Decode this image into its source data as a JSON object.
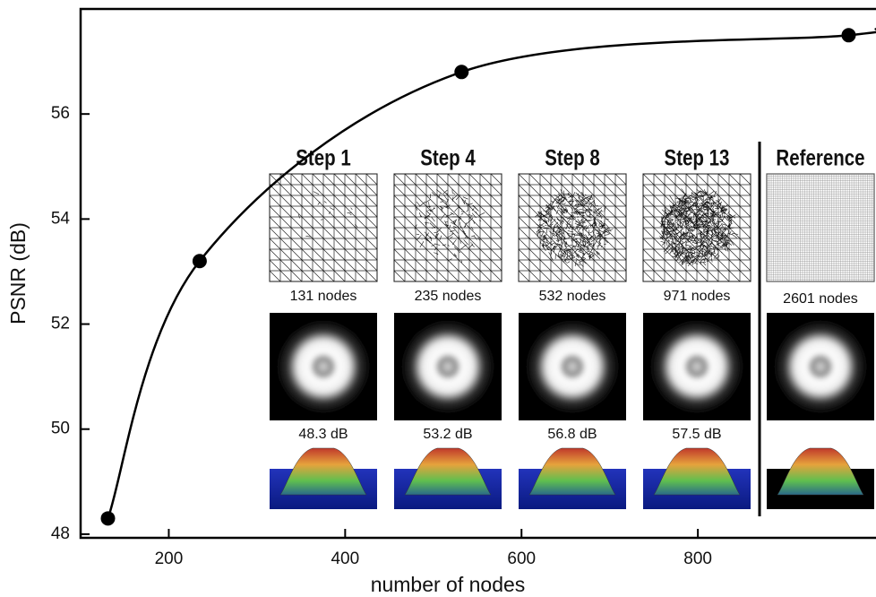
{
  "chart_data": {
    "type": "line",
    "xlabel": "number of nodes",
    "ylabel": "PSNR (dB)",
    "x": [
      131,
      235,
      532,
      971
    ],
    "values": [
      48.3,
      53.2,
      56.8,
      57.5
    ],
    "color": "#000000",
    "xlim": [
      100,
      1002
    ],
    "ylim": [
      47.93,
      58
    ],
    "xticks": [
      200,
      400,
      600,
      800
    ],
    "yticks": [
      48,
      50,
      52,
      54,
      56
    ],
    "insets": [
      {
        "title": "Step 1",
        "nodes": "131 nodes",
        "psnr": "48.3 dB"
      },
      {
        "title": "Step 4",
        "nodes": "235 nodes",
        "psnr": "53.2 dB"
      },
      {
        "title": "Step 8",
        "nodes": "532 nodes",
        "psnr": "56.8 dB"
      },
      {
        "title": "Step 13",
        "nodes": "971 nodes",
        "psnr": "57.5 dB"
      },
      {
        "title": "Reference",
        "nodes": "2601 nodes"
      }
    ]
  }
}
